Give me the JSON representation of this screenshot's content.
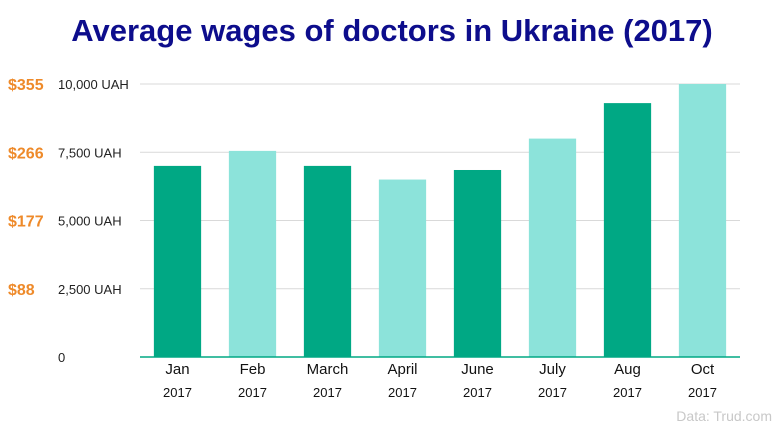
{
  "chart_data": {
    "type": "bar",
    "title": "Average wages of doctors in Ukraine (2017)",
    "categories": [
      "Jan",
      "Feb",
      "March",
      "April",
      "June",
      "July",
      "Aug",
      "Oct"
    ],
    "category_years": [
      "2017",
      "2017",
      "2017",
      "2017",
      "2017",
      "2017",
      "2017",
      "2017"
    ],
    "values": [
      7000,
      7550,
      7000,
      6500,
      6850,
      8000,
      9300,
      10000
    ],
    "ylim": [
      0,
      10000
    ],
    "y_ticks": [
      {
        "value": 0,
        "label": "0",
        "usd": ""
      },
      {
        "value": 2500,
        "label": "2,500 UAH",
        "usd": "$88"
      },
      {
        "value": 5000,
        "label": "5,000 UAH",
        "usd": "$177"
      },
      {
        "value": 7500,
        "label": "7,500 UAH",
        "usd": "$266"
      },
      {
        "value": 10000,
        "label": "10,000 UAH",
        "usd": "$355"
      }
    ],
    "bar_colors": [
      "#00a884",
      "#8ce3da",
      "#00a884",
      "#8ce3da",
      "#00a884",
      "#8ce3da",
      "#00a884",
      "#8ce3da"
    ],
    "usd_color": "#ee8a2a",
    "title_color": "#0d0d8c",
    "grid": true,
    "source": "Data: Trud.com"
  }
}
